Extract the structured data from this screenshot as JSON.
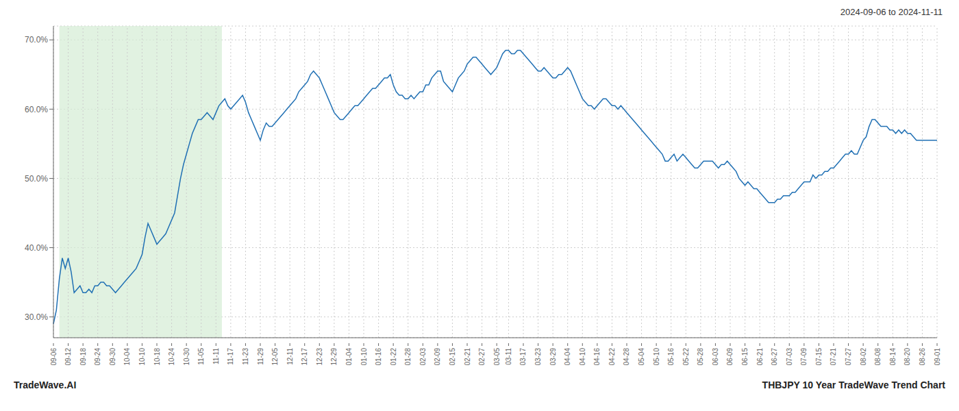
{
  "chart_data": {
    "type": "line",
    "title": "2024-09-06 to 2024-11-11",
    "annotations": [
      "TradeWave.AI",
      "THBJPY 10 Year TradeWave Trend Chart"
    ],
    "color": "#2070b4",
    "grid": true,
    "ylim": [
      27.0,
      72.0
    ],
    "yticks": [
      {
        "value": 30.0,
        "label": "30.0%"
      },
      {
        "value": 40.0,
        "label": "40.0%"
      },
      {
        "value": 50.0,
        "label": "50.0%"
      },
      {
        "value": 60.0,
        "label": "60.0%"
      },
      {
        "value": 70.0,
        "label": "70.0%"
      }
    ],
    "shade": {
      "start": "09-12",
      "end": "11-11",
      "color": "#d4ecd4"
    },
    "categories": [
      "09-06",
      null,
      null,
      null,
      null,
      "09-12",
      null,
      null,
      null,
      null,
      "09-18",
      null,
      null,
      null,
      null,
      "09-24",
      null,
      null,
      null,
      null,
      "09-30",
      null,
      null,
      null,
      null,
      "10-04",
      null,
      null,
      null,
      null,
      "10-10",
      null,
      null,
      null,
      null,
      "10-18",
      null,
      null,
      null,
      null,
      "10-24",
      null,
      null,
      null,
      null,
      "10-30",
      null,
      null,
      null,
      null,
      "11-05",
      null,
      null,
      null,
      null,
      "11-11",
      null,
      null,
      null,
      null,
      "11-17",
      null,
      null,
      null,
      null,
      "11-23",
      null,
      null,
      null,
      null,
      "11-29",
      null,
      null,
      null,
      null,
      "12-05",
      null,
      null,
      null,
      null,
      "12-11",
      null,
      null,
      null,
      null,
      "12-17",
      null,
      null,
      null,
      null,
      "12-23",
      null,
      null,
      null,
      null,
      "12-29",
      null,
      null,
      null,
      null,
      "01-04",
      null,
      null,
      null,
      null,
      "01-10",
      null,
      null,
      null,
      null,
      "01-16",
      null,
      null,
      null,
      null,
      "01-22",
      null,
      null,
      null,
      null,
      "01-28",
      null,
      null,
      null,
      null,
      "02-03",
      null,
      null,
      null,
      null,
      "02-09",
      null,
      null,
      null,
      null,
      "02-15",
      null,
      null,
      null,
      null,
      "02-21",
      null,
      null,
      null,
      null,
      "02-27",
      null,
      null,
      null,
      null,
      "03-05",
      null,
      null,
      null,
      "03-11",
      null,
      null,
      null,
      null,
      "03-17",
      null,
      null,
      null,
      null,
      "03-23",
      null,
      null,
      null,
      null,
      "03-29",
      null,
      null,
      null,
      null,
      "04-04",
      null,
      null,
      null,
      null,
      "04-10",
      null,
      null,
      null,
      null,
      "04-16",
      null,
      null,
      null,
      null,
      "04-22",
      null,
      null,
      null,
      null,
      "04-28",
      null,
      null,
      null,
      null,
      "05-04",
      null,
      null,
      null,
      null,
      "05-10",
      null,
      null,
      null,
      null,
      "05-16",
      null,
      null,
      null,
      null,
      "05-22",
      null,
      null,
      null,
      null,
      "05-28",
      null,
      null,
      null,
      null,
      "06-03",
      null,
      null,
      null,
      null,
      "06-09",
      null,
      null,
      null,
      null,
      "06-15",
      null,
      null,
      null,
      null,
      "06-21",
      null,
      null,
      null,
      null,
      "06-27",
      null,
      null,
      null,
      null,
      "07-03",
      null,
      null,
      null,
      null,
      "07-09",
      null,
      null,
      null,
      null,
      "07-15",
      null,
      null,
      null,
      null,
      "07-21",
      null,
      null,
      null,
      null,
      "07-27",
      null,
      null,
      null,
      null,
      "08-02",
      null,
      null,
      null,
      null,
      "08-08",
      null,
      null,
      null,
      null,
      "08-14",
      null,
      null,
      null,
      null,
      "08-20",
      null,
      null,
      null,
      null,
      "08-26",
      null,
      null,
      null,
      null,
      "09-01"
    ],
    "values": [
      29.0,
      31.0,
      35.5,
      38.5,
      37.0,
      38.5,
      36.5,
      33.5,
      34.0,
      34.5,
      33.5,
      33.5,
      34.0,
      33.5,
      34.5,
      34.5,
      35.0,
      35.0,
      34.5,
      34.5,
      34.0,
      33.5,
      34.0,
      34.5,
      35.0,
      35.5,
      36.0,
      36.5,
      37.0,
      38.0,
      39.0,
      41.5,
      43.5,
      42.5,
      41.5,
      40.5,
      41.0,
      41.5,
      42.0,
      43.0,
      44.0,
      45.0,
      47.5,
      50.0,
      52.0,
      53.5,
      55.0,
      56.5,
      57.5,
      58.5,
      58.5,
      59.0,
      59.5,
      59.0,
      58.5,
      59.5,
      60.5,
      61.0,
      61.5,
      60.5,
      60.0,
      60.5,
      61.0,
      61.5,
      62.0,
      61.0,
      59.5,
      58.5,
      57.5,
      56.5,
      55.5,
      57.0,
      58.0,
      57.5,
      57.5,
      58.0,
      58.5,
      59.0,
      59.5,
      60.0,
      60.5,
      61.0,
      61.5,
      62.5,
      63.0,
      63.5,
      64.0,
      65.0,
      65.5,
      65.0,
      64.5,
      63.5,
      62.5,
      61.5,
      60.5,
      59.5,
      59.0,
      58.5,
      58.5,
      59.0,
      59.5,
      60.0,
      60.5,
      60.5,
      61.0,
      61.5,
      62.0,
      62.5,
      63.0,
      63.0,
      63.5,
      64.0,
      64.5,
      64.5,
      65.0,
      63.5,
      62.5,
      62.0,
      62.0,
      61.5,
      61.5,
      62.0,
      61.5,
      62.0,
      62.5,
      62.5,
      63.5,
      63.5,
      64.5,
      65.0,
      65.5,
      65.5,
      64.0,
      63.5,
      63.0,
      62.5,
      63.5,
      64.5,
      65.0,
      65.5,
      66.5,
      67.0,
      67.5,
      67.5,
      67.0,
      66.5,
      66.0,
      65.5,
      65.0,
      65.5,
      66.0,
      67.0,
      68.0,
      68.5,
      68.5,
      68.0,
      68.0,
      68.5,
      68.5,
      68.0,
      67.5,
      67.0,
      66.5,
      66.0,
      65.5,
      65.5,
      66.0,
      65.5,
      65.0,
      64.5,
      64.5,
      65.0,
      65.0,
      65.5,
      66.0,
      65.5,
      64.5,
      63.5,
      62.5,
      61.5,
      61.0,
      60.5,
      60.5,
      60.0,
      60.5,
      61.0,
      61.5,
      61.5,
      61.0,
      60.5,
      60.5,
      60.0,
      60.5,
      60.0,
      59.5,
      59.0,
      58.5,
      58.0,
      57.5,
      57.0,
      56.5,
      56.0,
      55.5,
      55.0,
      54.5,
      54.0,
      53.5,
      52.5,
      52.5,
      53.0,
      53.5,
      52.5,
      53.0,
      53.5,
      53.0,
      52.5,
      52.0,
      51.5,
      51.5,
      52.0,
      52.5,
      52.5,
      52.5,
      52.5,
      52.0,
      51.5,
      52.0,
      52.0,
      52.5,
      52.0,
      51.5,
      51.0,
      50.0,
      49.5,
      49.0,
      49.5,
      49.0,
      48.5,
      48.5,
      48.0,
      47.5,
      47.0,
      46.5,
      46.5,
      46.5,
      47.0,
      47.0,
      47.5,
      47.5,
      47.5,
      48.0,
      48.0,
      48.5,
      49.0,
      49.5,
      49.5,
      49.5,
      50.5,
      50.0,
      50.5,
      50.5,
      51.0,
      51.0,
      51.5,
      51.5,
      52.0,
      52.5,
      53.0,
      53.5,
      53.5,
      54.0,
      53.5,
      53.5,
      54.5,
      55.5,
      56.0,
      57.5,
      58.5,
      58.5,
      58.0,
      57.5,
      57.5,
      57.5,
      57.0,
      57.0,
      56.5,
      57.0,
      56.5,
      57.0,
      56.5,
      56.5,
      56.0,
      55.5,
      55.5,
      55.5,
      55.5,
      55.5,
      55.5,
      55.5,
      55.5
    ]
  }
}
